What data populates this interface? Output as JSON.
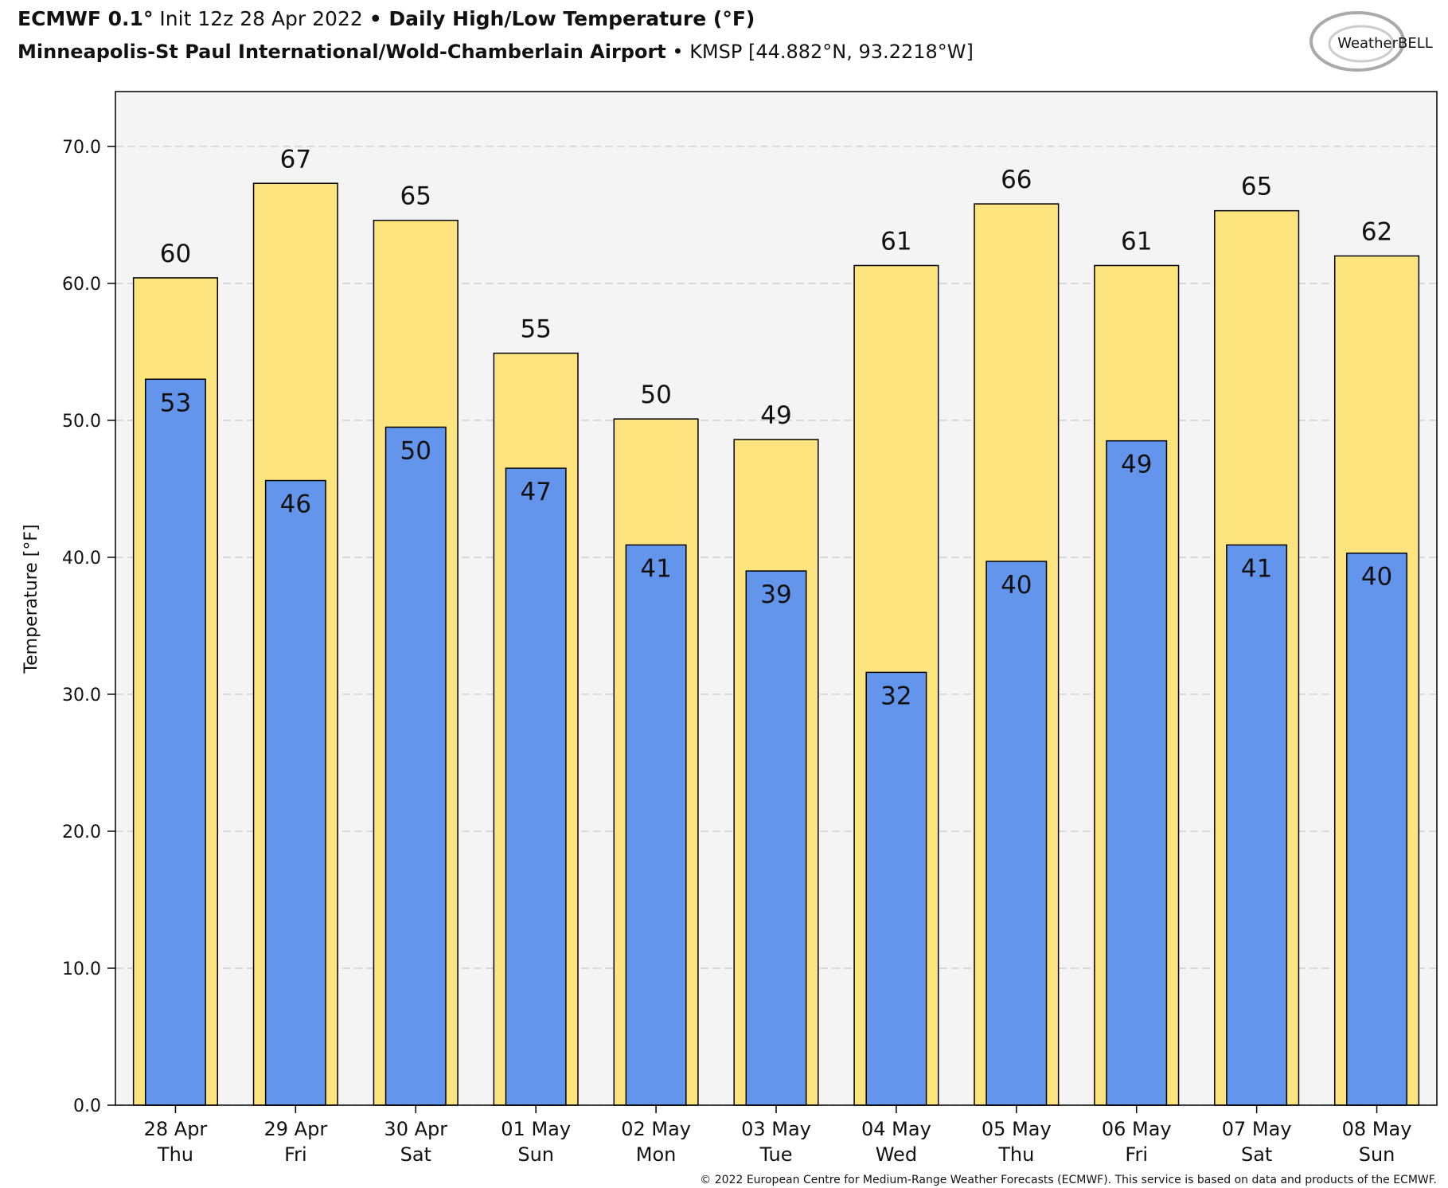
{
  "chart_data": {
    "type": "bar",
    "title_parts": [
      "ECMWF 0.1°",
      " Init 12z 28 Apr 2022 ",
      "•",
      " Daily High/Low Temperature (°F)"
    ],
    "subtitle_parts": [
      "Minneapolis-St Paul International/Wold-Chamberlain Airport",
      " • ",
      "KMSP [44.882°N, 93.2218°W]"
    ],
    "logo": "WeatherBELL",
    "ylabel": "Temperature [°F]",
    "footer": "© 2022 European Centre for Medium-Range Weather Forecasts (ECMWF). This service is based on data and products of the ECMWF.",
    "categories": [
      "28 Apr",
      "29 Apr",
      "30 Apr",
      "01 May",
      "02 May",
      "03 May",
      "04 May",
      "05 May",
      "06 May",
      "07 May",
      "08 May"
    ],
    "weekdays": [
      "Thu",
      "Fri",
      "Sat",
      "Sun",
      "Mon",
      "Tue",
      "Wed",
      "Thu",
      "Fri",
      "Sat",
      "Sun"
    ],
    "series": [
      {
        "color": "#fde47f",
        "values": [
          60.4,
          67.3,
          64.6,
          54.9,
          50.1,
          48.6,
          61.3,
          65.8,
          61.3,
          65.3,
          62.0
        ],
        "value_labels": [
          "60",
          "67",
          "65",
          "55",
          "50",
          "49",
          "61",
          "66",
          "61",
          "65",
          "62"
        ]
      },
      {
        "color": "#6495ed",
        "values": [
          53.0,
          45.6,
          49.5,
          46.5,
          40.9,
          39.0,
          31.6,
          39.7,
          48.5,
          40.9,
          40.3
        ],
        "value_labels": [
          "53",
          "46",
          "50",
          "47",
          "41",
          "39",
          "32",
          "40",
          "49",
          "41",
          "40"
        ]
      }
    ],
    "ylim": [
      0,
      74
    ],
    "yticks": [
      {
        "value": 0,
        "label": "0.0"
      },
      {
        "value": 10,
        "label": "10.0"
      },
      {
        "value": 20,
        "label": "20.0"
      },
      {
        "value": 30,
        "label": "30.0"
      },
      {
        "value": 40,
        "label": "40.0"
      },
      {
        "value": 50,
        "label": "50.0"
      },
      {
        "value": 60,
        "label": "60.0"
      },
      {
        "value": 70,
        "label": "70.0"
      }
    ],
    "grid": true
  }
}
